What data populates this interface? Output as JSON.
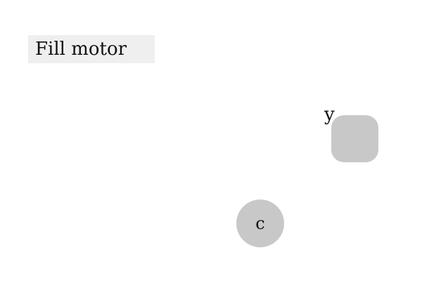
{
  "header": {
    "title": "Fill motor"
  },
  "nodes": {
    "square": {
      "label": "y"
    },
    "circle": {
      "label": "c"
    }
  },
  "colors": {
    "background": "#ffffff",
    "title_background": "#efefef",
    "node_fill": "#c8c8c8",
    "text": "#111111"
  }
}
